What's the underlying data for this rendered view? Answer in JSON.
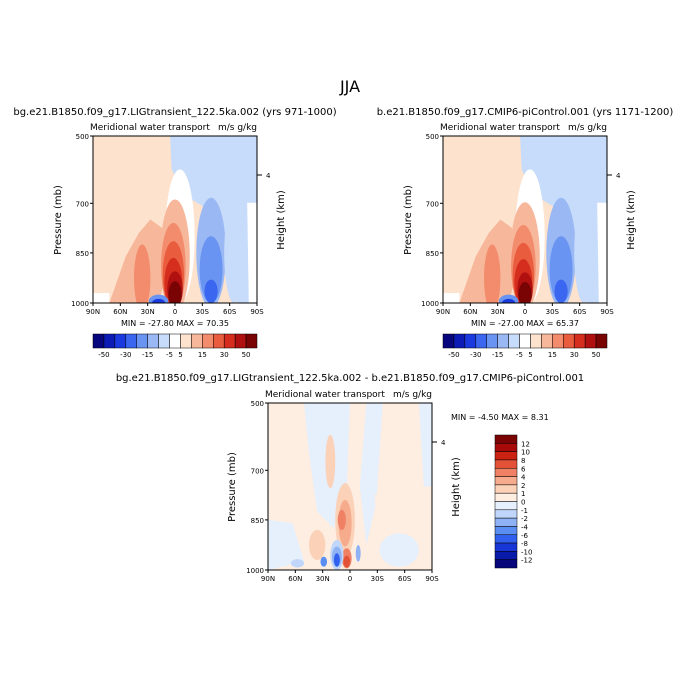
{
  "figure_title": "JJA",
  "colors": {
    "div": [
      "#08067c",
      "#0c1ab6",
      "#1a3ae0",
      "#3a66f0",
      "#6a94f2",
      "#9ab8f4",
      "#c6dcfa",
      "#ffffff",
      "#fde2cd",
      "#f7b79a",
      "#f28c6c",
      "#e95c3e",
      "#d62e1e",
      "#b01010",
      "#7a0404"
    ],
    "diff": [
      "#06057a",
      "#0a1aa8",
      "#1836d6",
      "#3160ee",
      "#5a8ef2",
      "#8fb2f4",
      "#c0d6fa",
      "#e6effc",
      "#fdeee1",
      "#fbd1b8",
      "#f6ab8c",
      "#ef8064",
      "#e35236",
      "#cc2212",
      "#a80a0a",
      "#7a0404"
    ]
  },
  "chart_data": [
    {
      "type": "heatmap",
      "id": "lig",
      "title": "bg.e21.B1850.f09_g17.LIGtransient_122.5ka.002 (yrs 971-1000)",
      "subtitle": "Meridional water transport",
      "units": "m/s g/kg",
      "ylabel": "Pressure (mb)",
      "y2label": "Height (km)",
      "y2ticks": [
        "4"
      ],
      "xticks": [
        "90N",
        "60N",
        "30N",
        "0",
        "30S",
        "60S",
        "90S"
      ],
      "yticks": [
        "500",
        "700",
        "850",
        "1000"
      ],
      "min_label": "MIN = -27.80   MAX =  70.35",
      "colorbar_labels": [
        "-50",
        "-30",
        "-15",
        "-5",
        "5",
        "15",
        "30",
        "50"
      ],
      "stats": {
        "min": -27.8,
        "max": 70.35
      }
    },
    {
      "type": "heatmap",
      "id": "pi",
      "title": "b.e21.B1850.f09_g17.CMIP6-piControl.001 (yrs 1171-1200)",
      "subtitle": "Meridional water transport",
      "units": "m/s g/kg",
      "ylabel": "Pressure (mb)",
      "y2label": "Height (km)",
      "y2ticks": [
        "4"
      ],
      "xticks": [
        "90N",
        "60N",
        "30N",
        "0",
        "30S",
        "60S",
        "90S"
      ],
      "yticks": [
        "500",
        "700",
        "850",
        "1000"
      ],
      "min_label": "MIN = -27.00   MAX =  65.37",
      "colorbar_labels": [
        "-50",
        "-30",
        "-15",
        "-5",
        "5",
        "15",
        "30",
        "50"
      ],
      "stats": {
        "min": -27.0,
        "max": 65.37
      }
    },
    {
      "type": "heatmap",
      "id": "diff",
      "title": "bg.e21.B1850.f09_g17.LIGtransient_122.5ka.002 - b.e21.B1850.f09_g17.CMIP6-piControl.001",
      "subtitle": "Meridional water transport",
      "units": "m/s g/kg",
      "ylabel": "Pressure (mb)",
      "y2label": "Height (km)",
      "y2ticks": [
        "4"
      ],
      "xticks": [
        "90N",
        "60N",
        "30N",
        "0",
        "30S",
        "60S",
        "90S"
      ],
      "yticks": [
        "500",
        "700",
        "850",
        "1000"
      ],
      "min_label": "MIN =   -4.50   MAX =    8.31",
      "colorbar_labels": [
        "12",
        "10",
        "8",
        "6",
        "4",
        "2",
        "1",
        "0",
        "-1",
        "-2",
        "-4",
        "-6",
        "-8",
        "-10",
        "-12"
      ],
      "stats": {
        "min": -4.5,
        "max": 8.31
      }
    }
  ]
}
